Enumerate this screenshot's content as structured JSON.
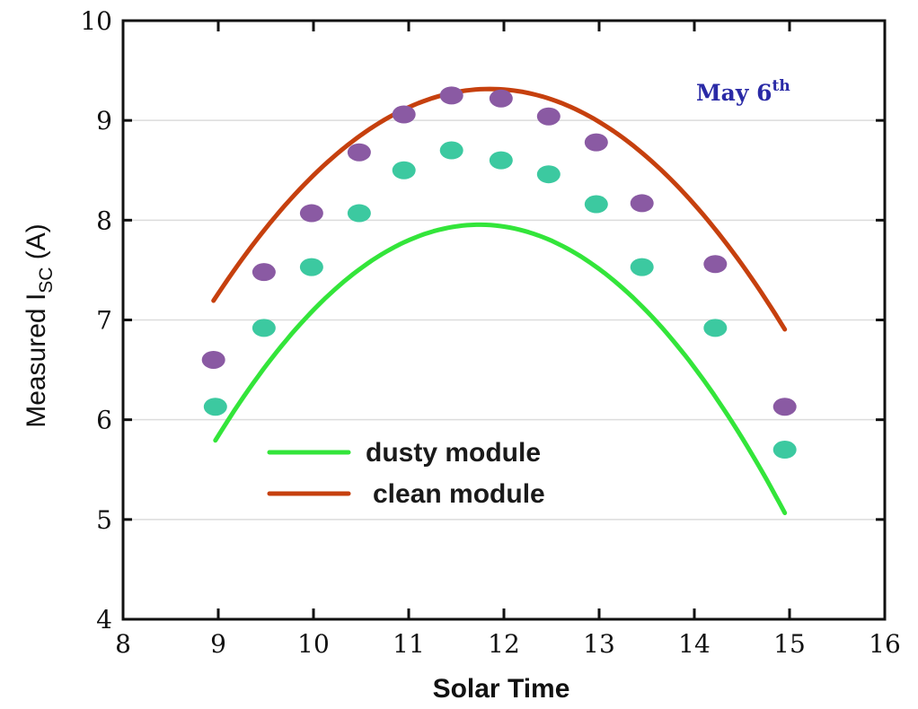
{
  "chart_data": {
    "type": "scatter",
    "title": "",
    "xlabel": "Solar Time",
    "ylabel": {
      "main": "Measured I",
      "sub": "SC",
      "unit": " (A)"
    },
    "xlim": [
      8,
      16
    ],
    "ylim": [
      4,
      10
    ],
    "xticks": [
      "8",
      "9",
      "10",
      "11",
      "12",
      "13",
      "14",
      "15",
      "16"
    ],
    "yticks": [
      "4",
      "5",
      "6",
      "7",
      "8",
      "9",
      "10"
    ],
    "grid": "horizontal",
    "legend_position": "lower-center",
    "annotation": {
      "text": "May 6",
      "sup": "th"
    },
    "series": [
      {
        "name": "dusty module",
        "line_color": "#33e53a",
        "marker_color": "#3cc9a0",
        "x": [
          8.97,
          9.48,
          9.98,
          10.48,
          10.95,
          11.45,
          11.97,
          12.47,
          12.97,
          13.45,
          14.22,
          14.95
        ],
        "y": [
          6.13,
          6.92,
          7.53,
          8.07,
          8.5,
          8.7,
          8.6,
          8.46,
          8.16,
          7.53,
          6.92,
          5.7
        ],
        "fit_coeffs": [
          -30.8,
          6.6,
          -0.281
        ]
      },
      {
        "name": "clean module",
        "line_color": "#c6400e",
        "marker_color": "#8a5aa3",
        "x": [
          8.95,
          9.48,
          9.98,
          10.48,
          10.95,
          11.45,
          11.97,
          12.47,
          12.97,
          13.45,
          14.22,
          14.95
        ],
        "y": [
          6.6,
          7.48,
          8.07,
          8.68,
          9.06,
          9.25,
          9.22,
          9.04,
          8.78,
          8.17,
          7.56,
          6.13
        ],
        "fit_coeffs": [
          -26.03,
          5.963,
          -0.2515
        ]
      }
    ]
  }
}
